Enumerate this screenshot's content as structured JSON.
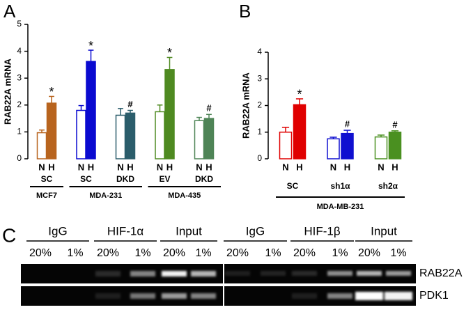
{
  "chart_data": [
    {
      "panel": "A",
      "type": "bar",
      "y_label": "RAB22A mRNA",
      "ylim": [
        0,
        5
      ],
      "yticks": [
        0,
        1,
        2,
        3,
        4,
        5
      ],
      "cell_lines": [
        {
          "name": "MCF7",
          "groups": [
            {
              "label": "SC",
              "color": "#b8641e",
              "categories": [
                "N",
                "H"
              ],
              "values": [
                0.97,
                2.07
              ],
              "errors": [
                0.1,
                0.25
              ],
              "annotation": "*"
            }
          ]
        },
        {
          "name": "MDA-231",
          "groups": [
            {
              "label": "SC",
              "color": "#0a0ad0",
              "categories": [
                "N",
                "H"
              ],
              "values": [
                1.8,
                3.62
              ],
              "errors": [
                0.18,
                0.42
              ],
              "annotation": "*"
            },
            {
              "label": "DKD",
              "color": "#2b5d6b",
              "categories": [
                "N",
                "H"
              ],
              "values": [
                1.62,
                1.7
              ],
              "errors": [
                0.25,
                0.1
              ],
              "annotation": "#"
            }
          ]
        },
        {
          "name": "MDA-435",
          "groups": [
            {
              "label": "EV",
              "color": "#4f8a21",
              "categories": [
                "N",
                "H"
              ],
              "values": [
                1.75,
                3.32
              ],
              "errors": [
                0.25,
                0.45
              ],
              "annotation": "*"
            },
            {
              "label": "DKD",
              "color": "#4e8456",
              "categories": [
                "N",
                "H"
              ],
              "values": [
                1.42,
                1.5
              ],
              "errors": [
                0.12,
                0.15
              ],
              "annotation": "#"
            }
          ]
        }
      ]
    },
    {
      "panel": "B",
      "type": "bar",
      "y_label": "RAB22A mRNA",
      "ylim": [
        0,
        4
      ],
      "yticks": [
        0,
        1,
        2,
        3,
        4
      ],
      "cell_lines": [
        {
          "name": "MDA-MB-231",
          "groups": [
            {
              "label": "SC",
              "color": "#e00000",
              "categories": [
                "N",
                "H"
              ],
              "values": [
                1.0,
                2.03
              ],
              "errors": [
                0.18,
                0.22
              ],
              "annotation": "*"
            },
            {
              "label": "sh1α",
              "color": "#1010d0",
              "categories": [
                "N",
                "H"
              ],
              "values": [
                0.75,
                0.95
              ],
              "errors": [
                0.06,
                0.12
              ],
              "annotation": "#"
            },
            {
              "label": "sh2α",
              "color": "#4a9020",
              "categories": [
                "N",
                "H"
              ],
              "values": [
                0.82,
                1.0
              ],
              "errors": [
                0.07,
                0.05
              ],
              "annotation": "#"
            }
          ]
        }
      ]
    },
    {
      "panel": "C",
      "type": "gel",
      "gels": [
        {
          "groups": [
            {
              "label": "IgG",
              "lanes": [
                "20%",
                "1%"
              ]
            },
            {
              "label": "HIF-1α",
              "lanes": [
                "20%",
                "1%"
              ]
            },
            {
              "label": "Input",
              "lanes": [
                "20%",
                "1%"
              ]
            }
          ]
        },
        {
          "groups": [
            {
              "label": "IgG",
              "lanes": [
                "20%",
                "1%"
              ]
            },
            {
              "label": "HIF-1β",
              "lanes": [
                "20%",
                "1%"
              ]
            },
            {
              "label": "Input",
              "lanes": [
                "20%",
                "1%"
              ]
            }
          ]
        }
      ],
      "rows": [
        "RAB22A",
        "PDK1"
      ]
    }
  ]
}
